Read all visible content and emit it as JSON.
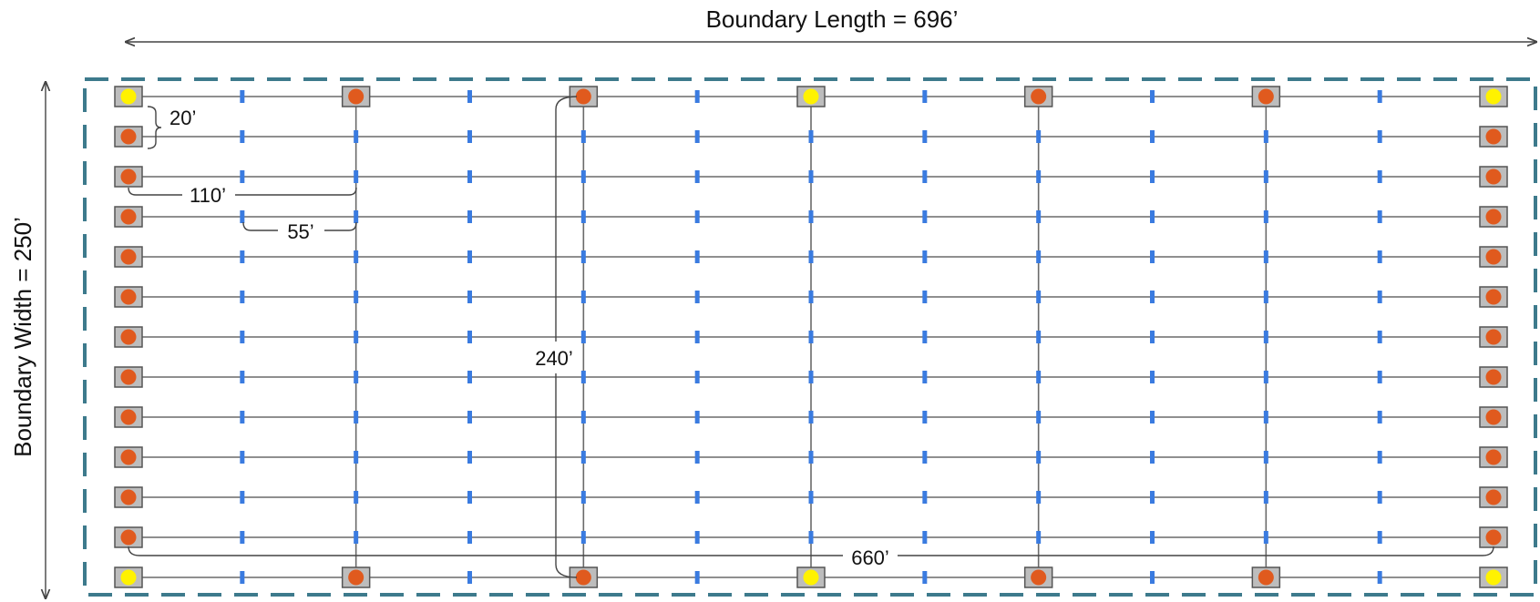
{
  "labels": {
    "boundary_length": "Boundary Length = 696’",
    "boundary_width": "Boundary Width = 250’",
    "row_spacing": "20’",
    "column_spacing": "110’",
    "half_spacing": "55’",
    "column_length": "240’",
    "row_length": "660’"
  },
  "grid": {
    "row_count": 13,
    "column_count": 7,
    "intermediate_marks_per_span": 2
  },
  "nodes": {
    "yellow": [
      [
        0,
        0
      ],
      [
        0,
        3
      ],
      [
        0,
        6
      ],
      [
        12,
        0
      ],
      [
        12,
        3
      ],
      [
        12,
        6
      ]
    ]
  },
  "colors": {
    "boundary": "#3d7a8c",
    "line": "#6a6a6a",
    "node_box_fill": "#bdbdbd",
    "node_box_stroke": "#555555",
    "orange_dot": "#e05a1e",
    "yellow_dot": "#fff200",
    "tick_mark": "#3a7be0",
    "dimension": "#444444"
  }
}
